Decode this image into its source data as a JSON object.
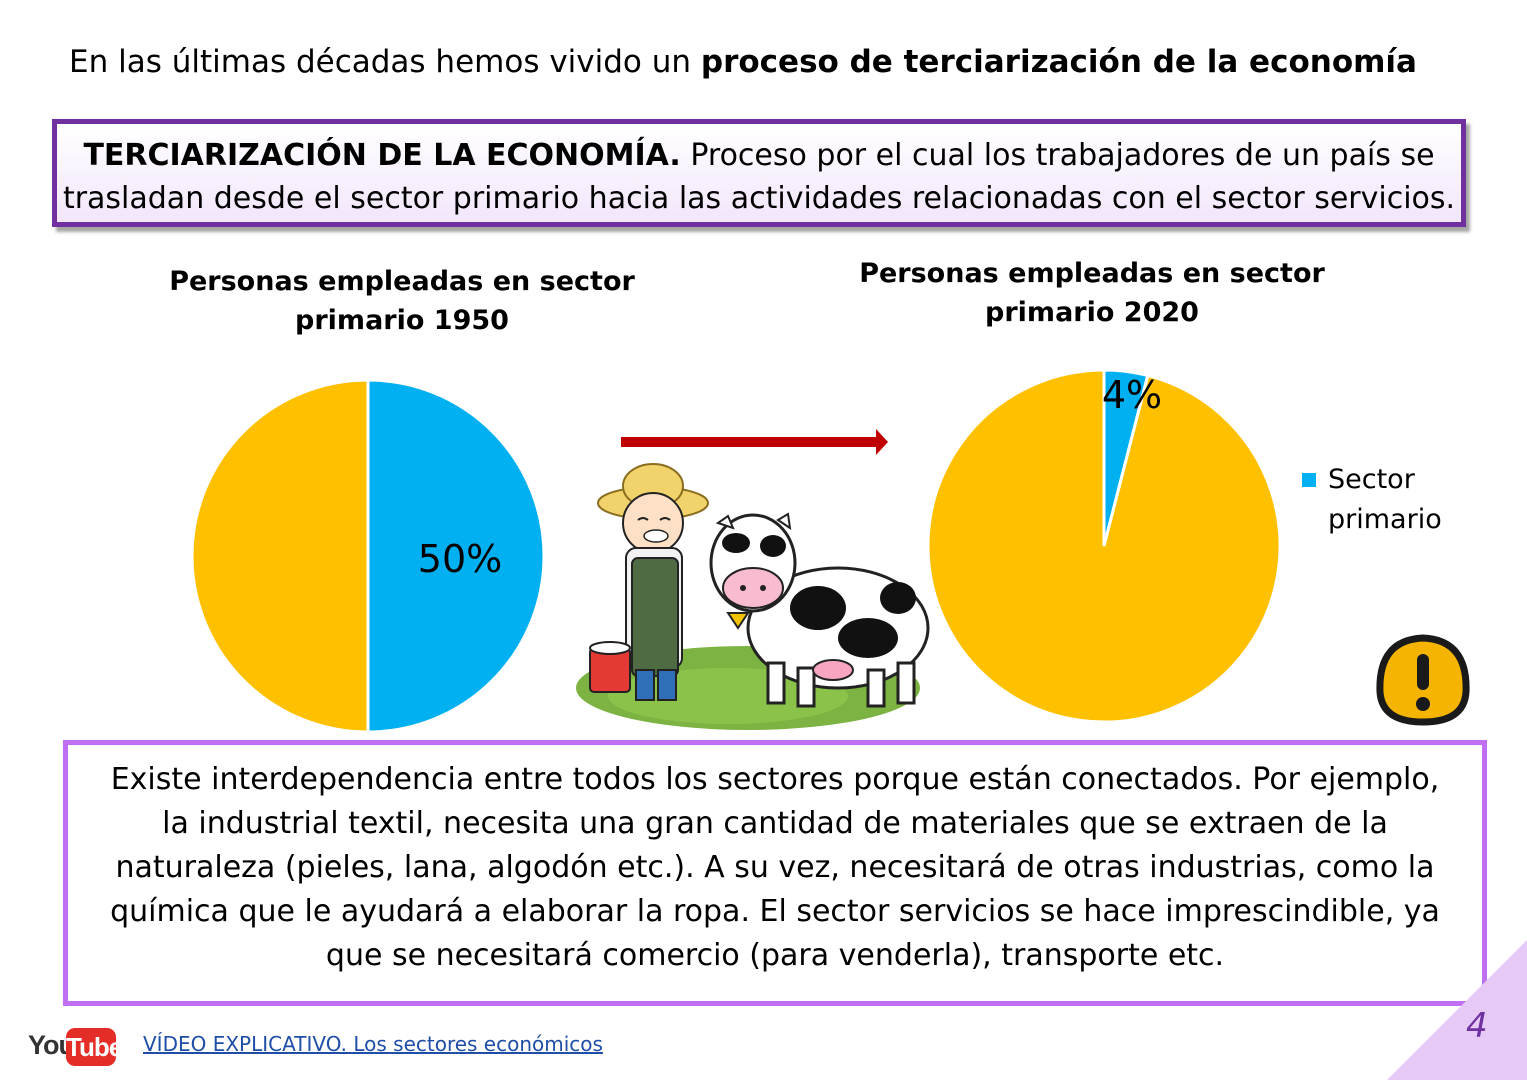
{
  "intro": {
    "text": "En las últimas décadas hemos vivido un ",
    "bold": "proceso de terciarización de la economía"
  },
  "definition": {
    "term": "TERCIARIZACIÓN DE LA ECONOMÍA.",
    "text": " Proceso por el cual los trabajadores de un país se trasladan desde el sector primario hacia las actividades relacionadas con el sector servicios."
  },
  "chart_data": [
    {
      "type": "pie",
      "title": "Personas empleadas en sector primario 1950",
      "series": [
        {
          "name": "Sector primario",
          "value": 50
        },
        {
          "value": 50
        }
      ],
      "data_labels": [
        "50%"
      ],
      "colors": {
        "sector_primario": "#00b0f0",
        "otros": "#ffc000"
      }
    },
    {
      "type": "pie",
      "title": "Personas empleadas en sector  primario  2020",
      "series": [
        {
          "name": "Sector primario",
          "value": 4
        },
        {
          "value": 96
        }
      ],
      "data_labels": [
        "4%"
      ],
      "legend": {
        "position": "right",
        "entries": [
          "Sector primario"
        ]
      },
      "colors": {
        "sector_primario": "#00b0f0",
        "otros": "#ffc000"
      }
    }
  ],
  "info": {
    "text": "Existe interdependencia entre todos los sectores porque están conectados. Por ejemplo, la industrial textil, necesita una gran cantidad de materiales que se extraen de la naturaleza (pieles, lana, algodón etc.).  A su vez, necesitará de otras industrias, como la química que le ayudará a elaborar la ropa. El sector servicios se hace imprescindible, ya que se necesitará comercio (para venderla), transporte etc."
  },
  "footer": {
    "youtube_you": "You",
    "youtube_tube": "Tube",
    "link_text": "VÍDEO EXPLICATIVO. Los sectores económicos",
    "page_number": "4"
  },
  "icons": {
    "arrow": "right-arrow-icon",
    "warning": "warning-icon",
    "illustration": "farmer-cow-illustration"
  }
}
